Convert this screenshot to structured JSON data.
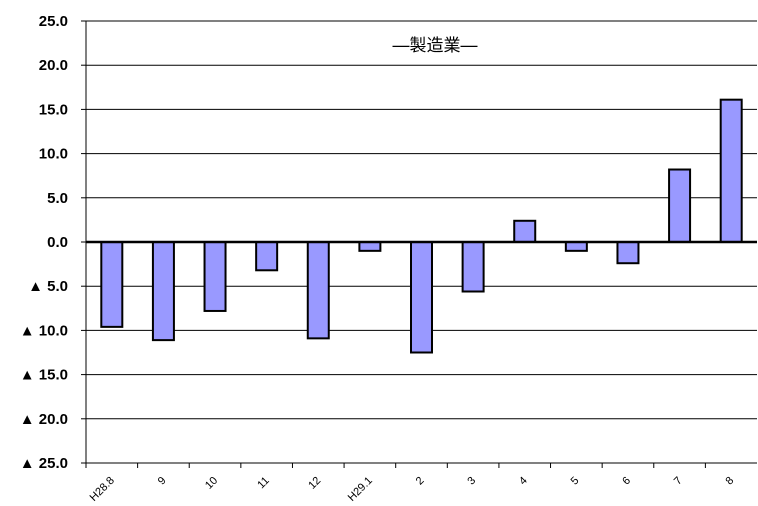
{
  "chart_data": {
    "type": "bar",
    "title": "―製造業―",
    "xlabel": "",
    "ylabel": "",
    "categories": [
      "H28.8",
      "9",
      "10",
      "11",
      "12",
      "H29.1",
      "2",
      "3",
      "4",
      "5",
      "6",
      "7",
      "8"
    ],
    "values": [
      -9.6,
      -11.1,
      -7.8,
      -3.2,
      -10.9,
      -1.0,
      -12.5,
      -5.6,
      2.4,
      -1.0,
      -2.4,
      8.2,
      16.1
    ],
    "ylim": [
      -25,
      25
    ],
    "y_ticks": [
      25,
      20,
      15,
      10,
      5,
      0,
      -5,
      -10,
      -15,
      -20,
      -25
    ],
    "y_tick_labels": [
      "25.0",
      "20.0",
      "15.0",
      "10.0",
      "5.0",
      "0.0",
      "▲ 5.0",
      "▲ 10.0",
      "▲ 15.0",
      "▲ 20.0",
      "▲ 25.0"
    ],
    "grid": true,
    "bar_color": "#9999ff",
    "bar_edge_color": "#000000"
  }
}
